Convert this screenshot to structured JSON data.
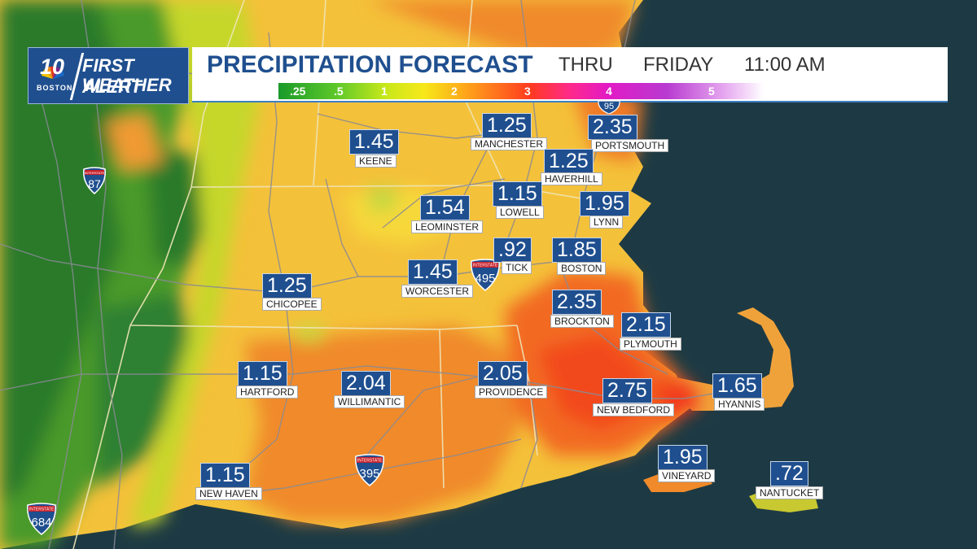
{
  "header": {
    "logo_number": "10",
    "logo_city": "BOSTON",
    "logo_line1": "FIRST ALERT",
    "logo_line2": "WEATHER",
    "title": "PRECIPITATION FORECAST",
    "thru": "THRU",
    "day": "FRIDAY",
    "time": "11:00 AM"
  },
  "legend": {
    "labels": [
      ".25",
      ".5",
      "1",
      "2",
      "3",
      "4",
      "5"
    ],
    "unit_hint": ""
  },
  "colors": {
    "brand_blue": "#1f4f8f",
    "ocean": "#1d3a44",
    "legend_low": "#1a9a2a",
    "legend_high": "#ffffff"
  },
  "cities": [
    {
      "name": "KEENE",
      "value": "1.45"
    },
    {
      "name": "MANCHESTER",
      "value": "1.25"
    },
    {
      "name": "PORTSMOUTH",
      "value": "2.35"
    },
    {
      "name": "HAVERHILL",
      "value": "1.25"
    },
    {
      "name": "LEOMINSTER",
      "value": "1.54"
    },
    {
      "name": "LOWELL",
      "value": "1.15"
    },
    {
      "name": "LYNN",
      "value": "1.95"
    },
    {
      "name": "TICK",
      "value": ".92"
    },
    {
      "name": "BOSTON",
      "value": "1.85"
    },
    {
      "name": "WORCESTER",
      "value": "1.45"
    },
    {
      "name": "CHICOPEE",
      "value": "1.25"
    },
    {
      "name": "BROCKTON",
      "value": "2.35"
    },
    {
      "name": "PLYMOUTH",
      "value": "2.15"
    },
    {
      "name": "HARTFORD",
      "value": "1.15"
    },
    {
      "name": "WILLIMANTIC",
      "value": "2.04"
    },
    {
      "name": "PROVIDENCE",
      "value": "2.05"
    },
    {
      "name": "NEW BEDFORD",
      "value": "2.75"
    },
    {
      "name": "HYANNIS",
      "value": "1.65"
    },
    {
      "name": "VINEYARD",
      "value": "1.95"
    },
    {
      "name": "NEW HAVEN",
      "value": "1.15"
    },
    {
      "name": "NANTUCKET",
      "value": ".72"
    }
  ],
  "interstates": [
    {
      "label": "INTERSTATE",
      "number": "87"
    },
    {
      "label": "INTERSTATE",
      "number": "495"
    },
    {
      "label": "INTERSTATE",
      "number": "395"
    },
    {
      "label": "INTERSTATE",
      "number": "684"
    },
    {
      "label": "",
      "number": "95"
    }
  ]
}
